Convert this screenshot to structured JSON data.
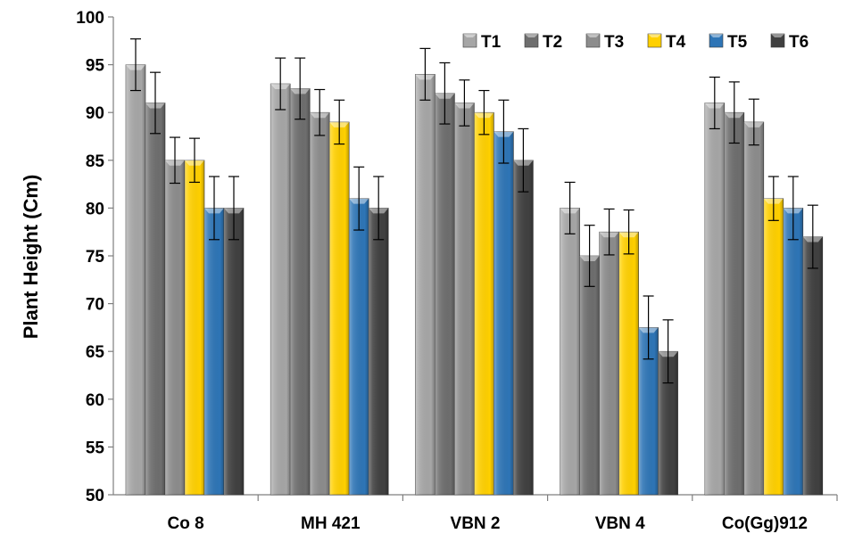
{
  "chart_data": {
    "type": "bar",
    "title": "",
    "xlabel": "",
    "ylabel": "Plant Height (Cm)",
    "ylim": [
      50,
      100
    ],
    "yticks": [
      50,
      55,
      60,
      65,
      70,
      75,
      80,
      85,
      90,
      95,
      100
    ],
    "grid": false,
    "legend_position": "top-right",
    "categories": [
      "Co 8",
      "MH 421",
      "VBN 2",
      "VBN 4",
      "Co(Gg)912"
    ],
    "series": [
      {
        "name": "T1",
        "color": "#a6a6a6",
        "values": [
          95,
          93,
          94,
          80,
          91
        ],
        "errors": [
          2.7,
          2.7,
          2.7,
          2.7,
          2.7
        ]
      },
      {
        "name": "T2",
        "color": "#6e6e6e",
        "values": [
          91,
          92.5,
          92,
          75,
          90
        ],
        "errors": [
          3.2,
          3.2,
          3.2,
          3.2,
          3.2
        ]
      },
      {
        "name": "T3",
        "color": "#8c8c8c",
        "values": [
          85,
          90,
          91,
          77.5,
          89
        ],
        "errors": [
          2.4,
          2.4,
          2.4,
          2.4,
          2.4
        ]
      },
      {
        "name": "T4",
        "color": "#ffd000",
        "values": [
          85,
          89,
          90,
          77.5,
          81
        ],
        "errors": [
          2.3,
          2.3,
          2.3,
          2.3,
          2.3
        ]
      },
      {
        "name": "T5",
        "color": "#2e75b6",
        "values": [
          80,
          81,
          88,
          67.5,
          80
        ],
        "errors": [
          3.3,
          3.3,
          3.3,
          3.3,
          3.3
        ]
      },
      {
        "name": "T6",
        "color": "#404040",
        "values": [
          80,
          80,
          85,
          65,
          77
        ],
        "errors": [
          3.3,
          3.3,
          3.3,
          3.3,
          3.3
        ]
      }
    ]
  }
}
